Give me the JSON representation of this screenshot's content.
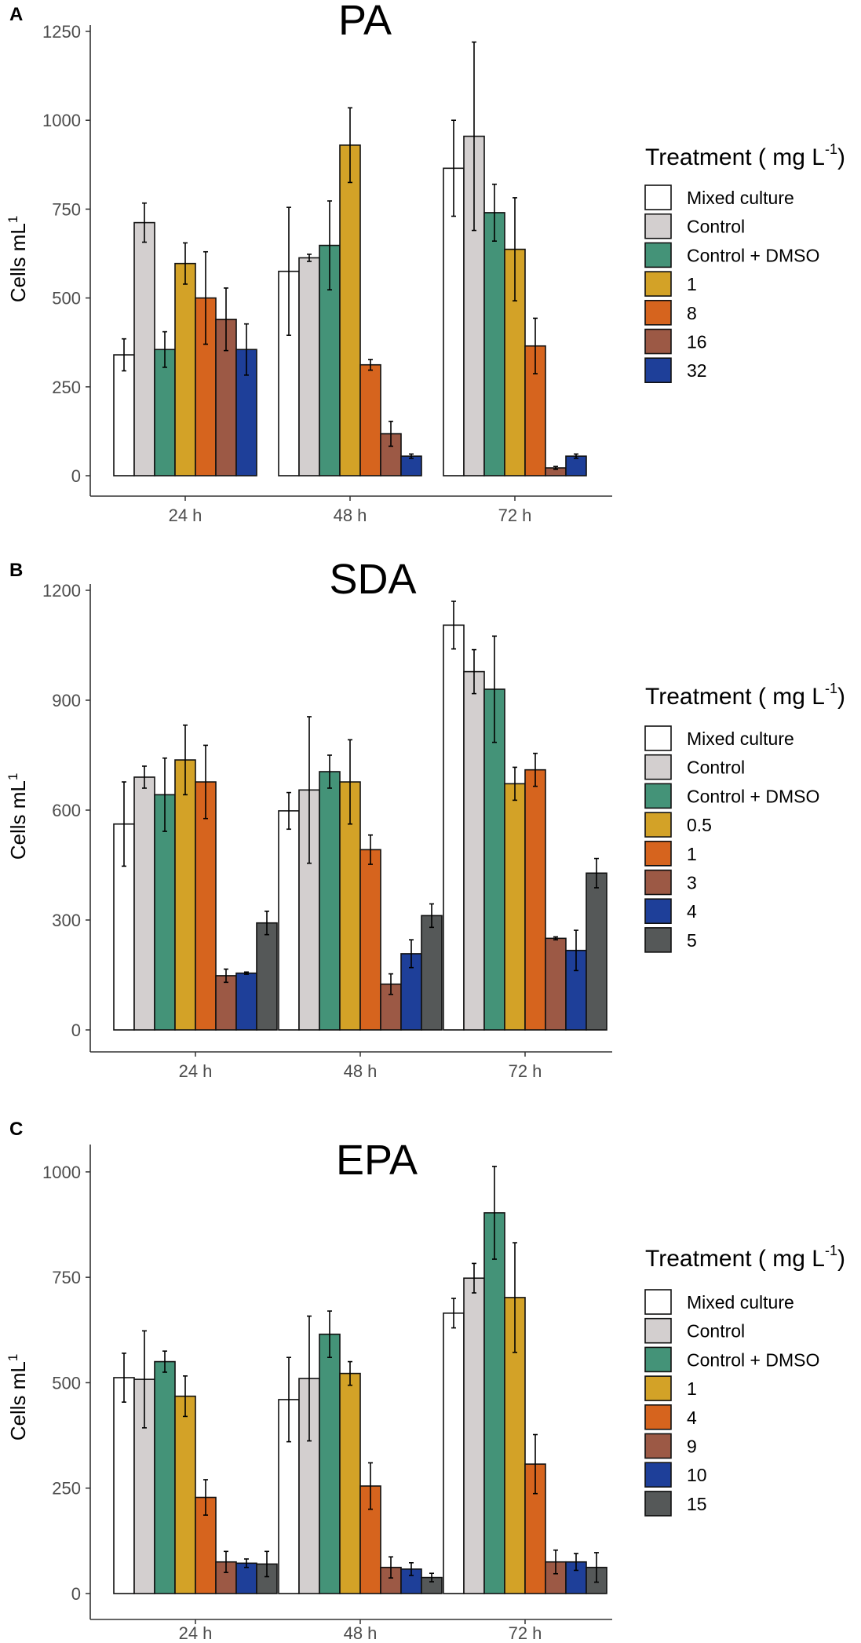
{
  "colors": {
    "Mixed culture": "#ffffff",
    "Control": "#d3cfcf",
    "Control + DMSO": "#449378",
    "t1": "#d3a227",
    "t2": "#d6641e",
    "t3": "#9c5945",
    "t4": "#1e3f99",
    "t5": "#555858"
  },
  "chart_data": [
    {
      "panel_label": "A",
      "type": "bar",
      "title": "PA",
      "ylabel": "Cells mL",
      "ylabel_sup": "1",
      "ylim": [
        0,
        1250
      ],
      "yticks": [
        0,
        250,
        500,
        750,
        1000,
        1250
      ],
      "ytick_labels": [
        "0",
        "250",
        "500",
        "750",
        "1000",
        "1250"
      ],
      "categories": [
        "24 h",
        "48 h",
        "72 h"
      ],
      "legend": {
        "title": "Treatment ( mg L",
        "title_sup": "-1",
        "title_end": ")"
      },
      "series": [
        {
          "name": "Mixed culture",
          "color_key": "Mixed culture",
          "values": [
            340,
            575,
            865
          ],
          "err": [
            45,
            180,
            135
          ]
        },
        {
          "name": "Control",
          "color_key": "Control",
          "values": [
            712,
            613,
            955
          ],
          "err": [
            55,
            10,
            265
          ]
        },
        {
          "name": "Control + DMSO",
          "color_key": "Control + DMSO",
          "values": [
            355,
            648,
            740
          ],
          "err": [
            50,
            125,
            80
          ]
        },
        {
          "name": "1",
          "color_key": "t1",
          "values": [
            597,
            930,
            637
          ],
          "err": [
            58,
            105,
            145
          ]
        },
        {
          "name": "8",
          "color_key": "t2",
          "values": [
            500,
            312,
            365
          ],
          "err": [
            130,
            15,
            78
          ]
        },
        {
          "name": "16",
          "color_key": "t3",
          "values": [
            440,
            118,
            22
          ],
          "err": [
            88,
            35,
            4
          ]
        },
        {
          "name": "32",
          "color_key": "t4",
          "values": [
            355,
            55,
            55
          ],
          "err": [
            72,
            6,
            6
          ]
        }
      ]
    },
    {
      "panel_label": "B",
      "type": "bar",
      "title": "SDA",
      "ylabel": "Cells mL",
      "ylabel_sup": "1",
      "ylim": [
        0,
        1200
      ],
      "yticks": [
        0,
        300,
        600,
        900,
        1200
      ],
      "ytick_labels": [
        "0",
        "300",
        "600",
        "900",
        "1200"
      ],
      "categories": [
        "24 h",
        "48 h",
        "72 h"
      ],
      "legend": {
        "title": "Treatment ( mg L",
        "title_sup": "-1",
        "title_end": ")"
      },
      "series": [
        {
          "name": "Mixed culture",
          "color_key": "Mixed culture",
          "values": [
            562,
            598,
            1105
          ],
          "err": [
            115,
            50,
            65
          ]
        },
        {
          "name": "Control",
          "color_key": "Control",
          "values": [
            690,
            655,
            978
          ],
          "err": [
            30,
            200,
            60
          ]
        },
        {
          "name": "Control + DMSO",
          "color_key": "Control + DMSO",
          "values": [
            642,
            705,
            930
          ],
          "err": [
            100,
            45,
            145
          ]
        },
        {
          "name": "0.5",
          "color_key": "t1",
          "values": [
            737,
            677,
            672
          ],
          "err": [
            95,
            115,
            45
          ]
        },
        {
          "name": "1",
          "color_key": "t2",
          "values": [
            677,
            492,
            710
          ],
          "err": [
            100,
            40,
            45
          ]
        },
        {
          "name": "3",
          "color_key": "t3",
          "values": [
            148,
            125,
            250
          ],
          "err": [
            18,
            28,
            4
          ]
        },
        {
          "name": "4",
          "color_key": "t4",
          "values": [
            155,
            208,
            217
          ],
          "err": [
            3,
            38,
            55
          ]
        },
        {
          "name": "5",
          "color_key": "t5",
          "values": [
            292,
            312,
            428
          ],
          "err": [
            32,
            32,
            40
          ]
        }
      ]
    },
    {
      "panel_label": "C",
      "type": "bar",
      "title": "EPA",
      "ylabel": "Cells mL",
      "ylabel_sup": "1",
      "ylim": [
        0,
        1050
      ],
      "yticks": [
        0,
        250,
        500,
        750,
        1000
      ],
      "ytick_labels": [
        "0",
        "250",
        "500",
        "750",
        "1000"
      ],
      "categories": [
        "24 h",
        "48 h",
        "72 h"
      ],
      "legend": {
        "title": "Treatment ( mg L",
        "title_sup": "-1",
        "title_end": ")"
      },
      "series": [
        {
          "name": "Mixed culture",
          "color_key": "Mixed culture",
          "values": [
            512,
            460,
            665
          ],
          "err": [
            58,
            100,
            35
          ]
        },
        {
          "name": "Control",
          "color_key": "Control",
          "values": [
            508,
            510,
            748
          ],
          "err": [
            115,
            148,
            35
          ]
        },
        {
          "name": "Control + DMSO",
          "color_key": "Control + DMSO",
          "values": [
            550,
            615,
            903
          ],
          "err": [
            25,
            55,
            110
          ]
        },
        {
          "name": "1",
          "color_key": "t1",
          "values": [
            468,
            522,
            702
          ],
          "err": [
            48,
            28,
            130
          ]
        },
        {
          "name": "4",
          "color_key": "t2",
          "values": [
            228,
            255,
            307
          ],
          "err": [
            42,
            55,
            70
          ]
        },
        {
          "name": "9",
          "color_key": "t3",
          "values": [
            75,
            62,
            75
          ],
          "err": [
            25,
            25,
            28
          ]
        },
        {
          "name": "10",
          "color_key": "t4",
          "values": [
            72,
            58,
            75
          ],
          "err": [
            10,
            15,
            20
          ]
        },
        {
          "name": "15",
          "color_key": "t5",
          "values": [
            70,
            38,
            62
          ],
          "err": [
            30,
            10,
            35
          ]
        }
      ]
    }
  ]
}
